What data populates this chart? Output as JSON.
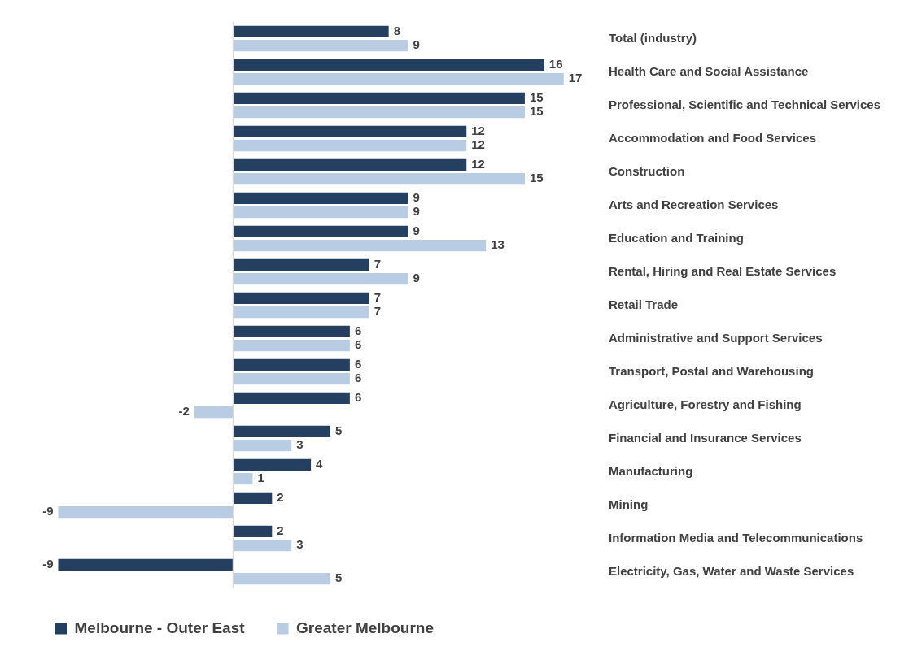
{
  "chart_data": {
    "type": "bar",
    "orientation": "horizontal",
    "data_labels": true,
    "legend": "bottom left",
    "tick_labels": "y",
    "categories": [
      "Total (industry)",
      "Health Care and Social Assistance",
      "Professional, Scientific and Technical Services",
      "Accommodation and Food Services",
      "Construction",
      "Arts and Recreation Services",
      "Education and Training",
      "Rental, Hiring and Real Estate Services",
      "Retail Trade",
      "Administrative and Support Services",
      "Transport, Postal and Warehousing",
      "Agriculture, Forestry and Fishing",
      "Financial and Insurance Services",
      "Manufacturing",
      "Mining",
      "Information Media and Telecommunications",
      "Electricity, Gas, Water and Waste Services"
    ],
    "series": [
      {
        "name": "Melbourne - Outer East",
        "color": "#243f60",
        "values": [
          8,
          16,
          15,
          12,
          12,
          9,
          9,
          7,
          7,
          6,
          6,
          6,
          5,
          4,
          2,
          2,
          -9
        ]
      },
      {
        "name": "Greater Melbourne",
        "color": "#b8cce4",
        "values": [
          9,
          17,
          15,
          12,
          15,
          9,
          13,
          9,
          7,
          6,
          6,
          -2,
          3,
          1,
          -9,
          3,
          5
        ]
      }
    ]
  }
}
